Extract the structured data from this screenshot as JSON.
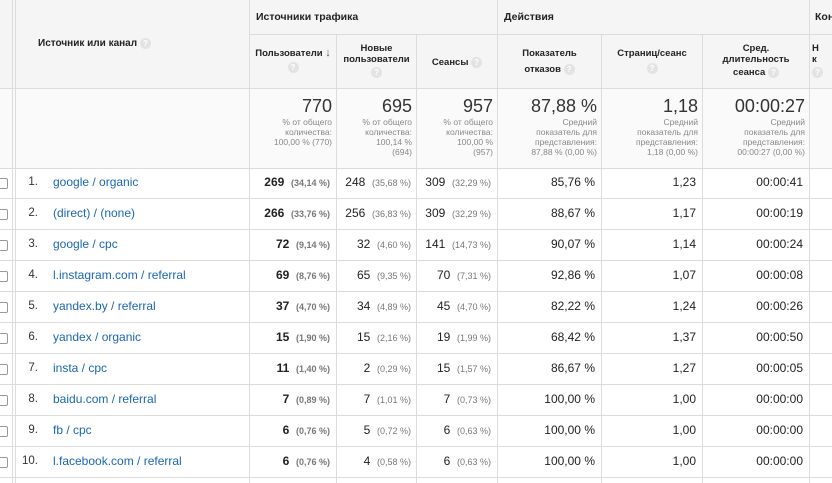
{
  "header": {
    "dimension_label": "Источник или канал",
    "groups": {
      "traffic": "Источники трафика",
      "actions": "Действия",
      "conversions": "Кон"
    },
    "columns": {
      "users": "Пользователи",
      "new_users_1": "Новые",
      "new_users_2": "пользователи",
      "sessions": "Сеансы",
      "bounce_1": "Показатель",
      "bounce_2": "отказов",
      "pages_per_session": "Страниц/сеанс",
      "avg_duration_1": "Сред.",
      "avg_duration_2": "длительность",
      "avg_duration_3": "сеанса",
      "conv_1": "Н",
      "conv_2": "к"
    },
    "help_glyph": "?",
    "sort_glyph": "↓"
  },
  "totals": {
    "users": {
      "value": "770",
      "l1": "% от общего",
      "l2": "количества:",
      "l3": "100,00 % (770)"
    },
    "new_users": {
      "value": "695",
      "l1": "% от общего",
      "l2": "количества:",
      "l3": "100,14 %",
      "l4": "(694)"
    },
    "sessions": {
      "value": "957",
      "l1": "% от общего",
      "l2": "количества:",
      "l3": "100,00 %",
      "l4": "(957)"
    },
    "bounce": {
      "value": "87,88 %",
      "l1": "Средний",
      "l2": "показатель для",
      "l3": "представления:",
      "l4": "87,88 % (0,00 %)"
    },
    "pages": {
      "value": "1,18",
      "l1": "Средний",
      "l2": "показатель для",
      "l3": "представления:",
      "l4": "1,18 (0,00 %)"
    },
    "duration": {
      "value": "00:00:27",
      "l1": "Средний",
      "l2": "показатель для",
      "l3": "представления:",
      "l4": "00:00:27 (0,00 %)"
    }
  },
  "rows": [
    {
      "num": "1.",
      "source": "google / organic",
      "users": "269",
      "users_pct": "(34,14 %)",
      "new": "248",
      "new_pct": "(35,68 %)",
      "sessions": "309",
      "sessions_pct": "(32,29 %)",
      "bounce": "85,76 %",
      "pages": "1,23",
      "duration": "00:00:41"
    },
    {
      "num": "2.",
      "source": "(direct) / (none)",
      "users": "266",
      "users_pct": "(33,76 %)",
      "new": "256",
      "new_pct": "(36,83 %)",
      "sessions": "309",
      "sessions_pct": "(32,29 %)",
      "bounce": "88,67 %",
      "pages": "1,17",
      "duration": "00:00:19"
    },
    {
      "num": "3.",
      "source": "google / cpc",
      "users": "72",
      "users_pct": "(9,14 %)",
      "new": "32",
      "new_pct": "(4,60 %)",
      "sessions": "141",
      "sessions_pct": "(14,73 %)",
      "bounce": "90,07 %",
      "pages": "1,14",
      "duration": "00:00:24"
    },
    {
      "num": "4.",
      "source": "l.instagram.com / referral",
      "users": "69",
      "users_pct": "(8,76 %)",
      "new": "65",
      "new_pct": "(9,35 %)",
      "sessions": "70",
      "sessions_pct": "(7,31 %)",
      "bounce": "92,86 %",
      "pages": "1,07",
      "duration": "00:00:08"
    },
    {
      "num": "5.",
      "source": "yandex.by / referral",
      "users": "37",
      "users_pct": "(4,70 %)",
      "new": "34",
      "new_pct": "(4,89 %)",
      "sessions": "45",
      "sessions_pct": "(4,70 %)",
      "bounce": "82,22 %",
      "pages": "1,24",
      "duration": "00:00:26"
    },
    {
      "num": "6.",
      "source": "yandex / organic",
      "users": "15",
      "users_pct": "(1,90 %)",
      "new": "15",
      "new_pct": "(2,16 %)",
      "sessions": "19",
      "sessions_pct": "(1,99 %)",
      "bounce": "68,42 %",
      "pages": "1,37",
      "duration": "00:00:50"
    },
    {
      "num": "7.",
      "source": "insta / cpc",
      "users": "11",
      "users_pct": "(1,40 %)",
      "new": "2",
      "new_pct": "(0,29 %)",
      "sessions": "15",
      "sessions_pct": "(1,57 %)",
      "bounce": "86,67 %",
      "pages": "1,27",
      "duration": "00:00:05"
    },
    {
      "num": "8.",
      "source": "baidu.com / referral",
      "users": "7",
      "users_pct": "(0,89 %)",
      "new": "7",
      "new_pct": "(1,01 %)",
      "sessions": "7",
      "sessions_pct": "(0,73 %)",
      "bounce": "100,00 %",
      "pages": "1,00",
      "duration": "00:00:00"
    },
    {
      "num": "9.",
      "source": "fb / cpc",
      "users": "6",
      "users_pct": "(0,76 %)",
      "new": "5",
      "new_pct": "(0,72 %)",
      "sessions": "6",
      "sessions_pct": "(0,63 %)",
      "bounce": "100,00 %",
      "pages": "1,00",
      "duration": "00:00:00"
    },
    {
      "num": "10.",
      "source": "l.facebook.com / referral",
      "users": "6",
      "users_pct": "(0,76 %)",
      "new": "4",
      "new_pct": "(0,58 %)",
      "sessions": "6",
      "sessions_pct": "(0,63 %)",
      "bounce": "100,00 %",
      "pages": "1,00",
      "duration": "00:00:00"
    }
  ]
}
